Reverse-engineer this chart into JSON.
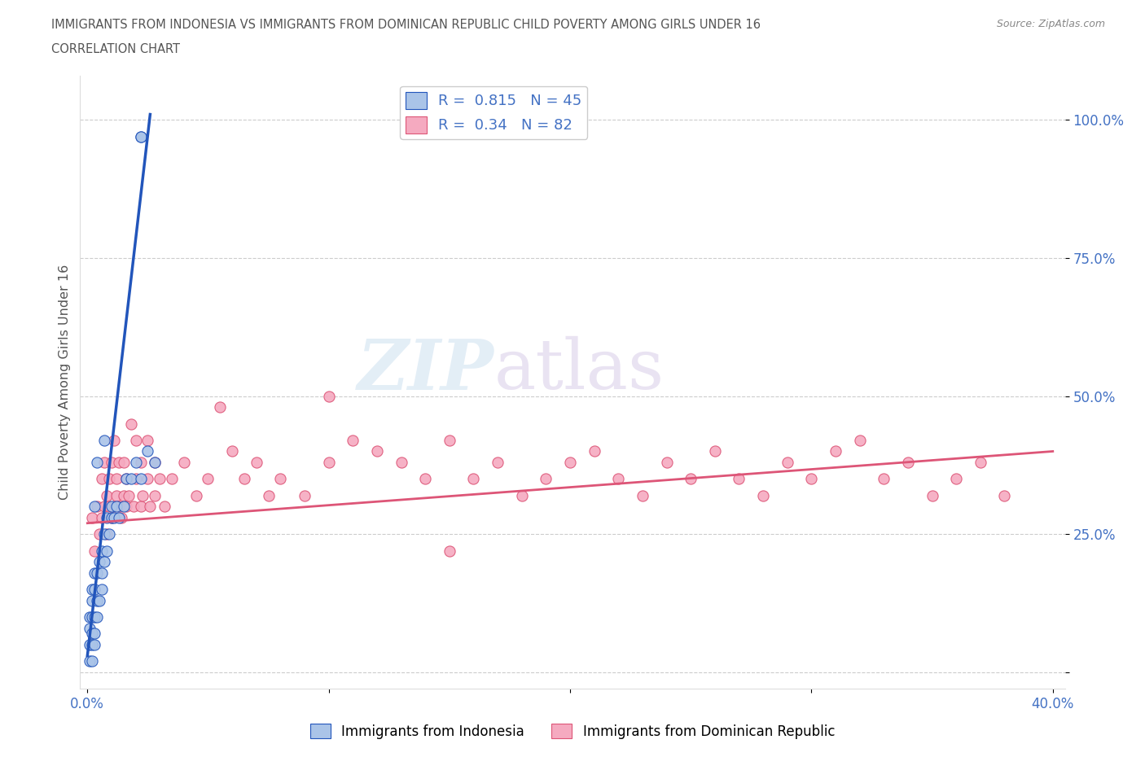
{
  "title_line1": "IMMIGRANTS FROM INDONESIA VS IMMIGRANTS FROM DOMINICAN REPUBLIC CHILD POVERTY AMONG GIRLS UNDER 16",
  "title_line2": "CORRELATION CHART",
  "source": "Source: ZipAtlas.com",
  "ylabel": "Child Poverty Among Girls Under 16",
  "color_indonesia": "#aac4e8",
  "color_dominican": "#f5aac0",
  "line_color_indonesia": "#2255bb",
  "line_color_dominican": "#dd5577",
  "R_indonesia": 0.815,
  "N_indonesia": 45,
  "R_dominican": 0.34,
  "N_dominican": 82,
  "indo_scatter_x": [
    0.001,
    0.001,
    0.001,
    0.001,
    0.002,
    0.002,
    0.002,
    0.002,
    0.002,
    0.002,
    0.003,
    0.003,
    0.003,
    0.003,
    0.003,
    0.004,
    0.004,
    0.004,
    0.005,
    0.005,
    0.006,
    0.006,
    0.006,
    0.007,
    0.007,
    0.008,
    0.008,
    0.009,
    0.01,
    0.01,
    0.011,
    0.012,
    0.013,
    0.015,
    0.016,
    0.018,
    0.02,
    0.022,
    0.025,
    0.028,
    0.003,
    0.004,
    0.007,
    0.022,
    0.022
  ],
  "indo_scatter_y": [
    0.02,
    0.05,
    0.08,
    0.1,
    0.02,
    0.05,
    0.07,
    0.1,
    0.13,
    0.15,
    0.05,
    0.07,
    0.1,
    0.15,
    0.18,
    0.1,
    0.13,
    0.18,
    0.13,
    0.2,
    0.15,
    0.18,
    0.22,
    0.2,
    0.25,
    0.22,
    0.28,
    0.25,
    0.28,
    0.3,
    0.28,
    0.3,
    0.28,
    0.3,
    0.35,
    0.35,
    0.38,
    0.35,
    0.4,
    0.38,
    0.3,
    0.38,
    0.42,
    0.97,
    0.97
  ],
  "dom_scatter_x": [
    0.002,
    0.003,
    0.004,
    0.005,
    0.006,
    0.006,
    0.007,
    0.007,
    0.008,
    0.008,
    0.009,
    0.009,
    0.01,
    0.01,
    0.011,
    0.011,
    0.012,
    0.012,
    0.013,
    0.013,
    0.014,
    0.015,
    0.015,
    0.016,
    0.016,
    0.017,
    0.018,
    0.019,
    0.02,
    0.02,
    0.022,
    0.022,
    0.023,
    0.025,
    0.025,
    0.026,
    0.028,
    0.028,
    0.03,
    0.032,
    0.035,
    0.04,
    0.045,
    0.05,
    0.055,
    0.06,
    0.065,
    0.07,
    0.075,
    0.08,
    0.09,
    0.1,
    0.11,
    0.12,
    0.13,
    0.14,
    0.15,
    0.16,
    0.17,
    0.18,
    0.19,
    0.2,
    0.21,
    0.22,
    0.23,
    0.24,
    0.25,
    0.26,
    0.27,
    0.28,
    0.29,
    0.3,
    0.31,
    0.32,
    0.33,
    0.34,
    0.35,
    0.36,
    0.37,
    0.38,
    0.1,
    0.15
  ],
  "dom_scatter_y": [
    0.28,
    0.22,
    0.3,
    0.25,
    0.35,
    0.28,
    0.3,
    0.38,
    0.25,
    0.32,
    0.3,
    0.35,
    0.28,
    0.38,
    0.3,
    0.42,
    0.32,
    0.35,
    0.3,
    0.38,
    0.28,
    0.32,
    0.38,
    0.3,
    0.35,
    0.32,
    0.45,
    0.3,
    0.35,
    0.42,
    0.3,
    0.38,
    0.32,
    0.35,
    0.42,
    0.3,
    0.32,
    0.38,
    0.35,
    0.3,
    0.35,
    0.38,
    0.32,
    0.35,
    0.48,
    0.4,
    0.35,
    0.38,
    0.32,
    0.35,
    0.32,
    0.38,
    0.42,
    0.4,
    0.38,
    0.35,
    0.42,
    0.35,
    0.38,
    0.32,
    0.35,
    0.38,
    0.4,
    0.35,
    0.32,
    0.38,
    0.35,
    0.4,
    0.35,
    0.32,
    0.38,
    0.35,
    0.4,
    0.42,
    0.35,
    0.38,
    0.32,
    0.35,
    0.38,
    0.32,
    0.5,
    0.22
  ],
  "indo_line_x": [
    0.0,
    0.026
  ],
  "indo_line_y": [
    0.03,
    1.01
  ],
  "dom_line_x": [
    0.0,
    0.4
  ],
  "dom_line_y": [
    0.27,
    0.4
  ],
  "yticks": [
    0.0,
    0.25,
    0.5,
    0.75,
    1.0
  ],
  "ytick_labels": [
    "",
    "25.0%",
    "50.0%",
    "75.0%",
    "100.0%"
  ],
  "xticks": [
    0.0,
    0.1,
    0.2,
    0.3,
    0.4
  ],
  "xtick_labels": [
    "0.0%",
    "",
    "",
    "",
    "40.0%"
  ]
}
